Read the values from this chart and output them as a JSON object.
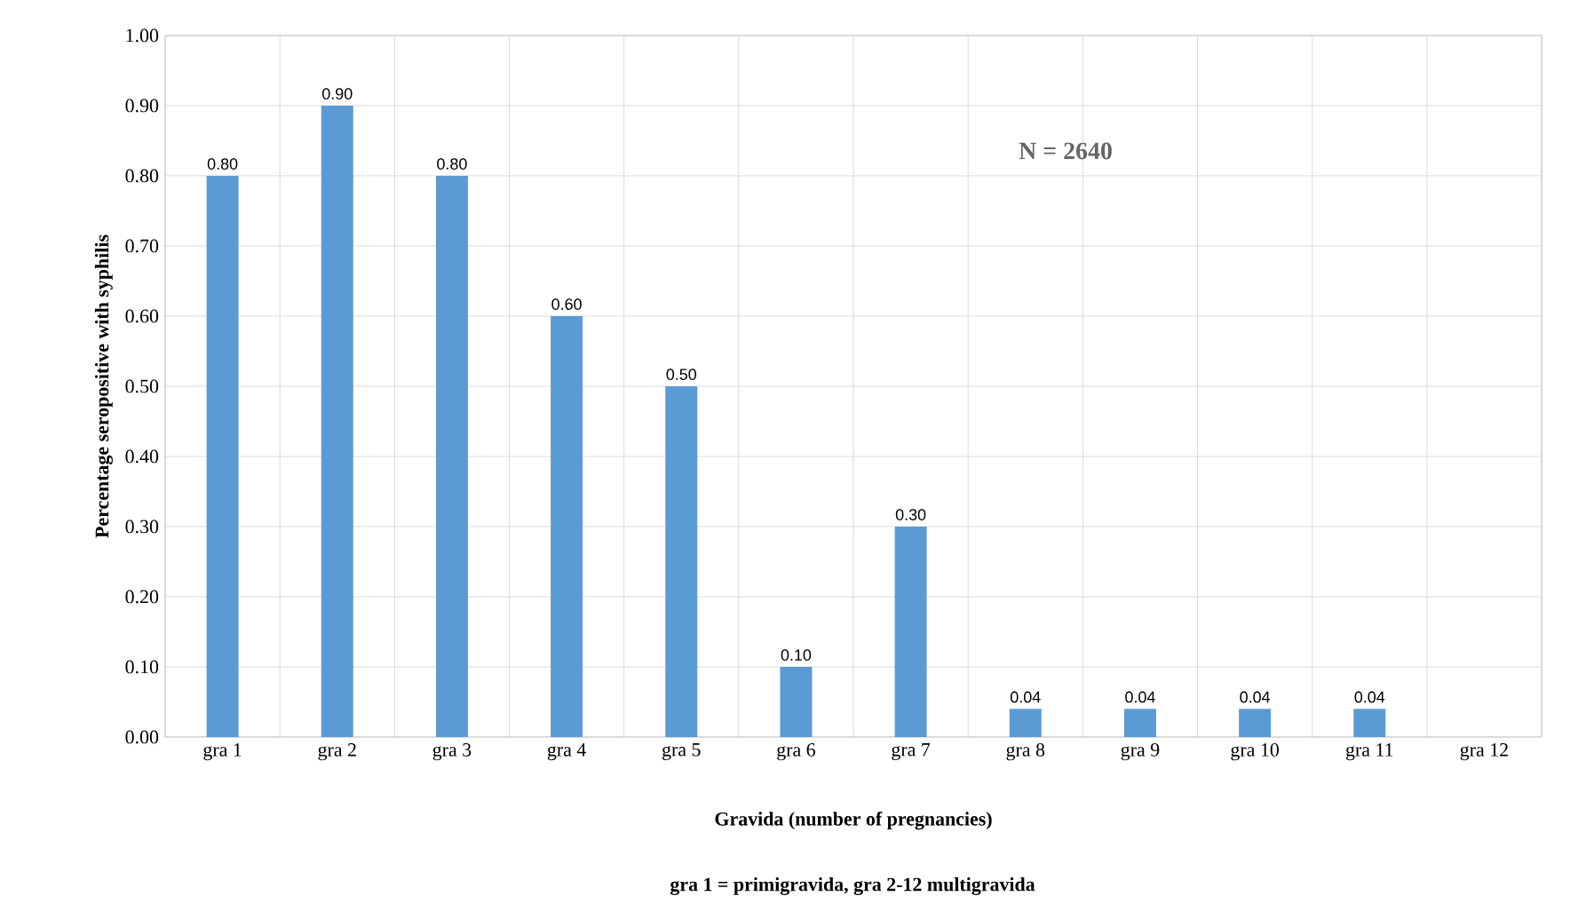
{
  "chart_data": {
    "type": "bar",
    "categories": [
      "gra 1",
      "gra 2",
      "gra 3",
      "gra 4",
      "gra 5",
      "gra 6",
      "gra 7",
      "gra 8",
      "gra 9",
      "gra 10",
      "gra 11",
      "gra 12"
    ],
    "values": [
      0.8,
      0.9,
      0.8,
      0.6,
      0.5,
      0.1,
      0.3,
      0.04,
      0.04,
      0.04,
      0.04,
      null
    ],
    "value_labels": [
      "0.80",
      "0.90",
      "0.80",
      "0.60",
      "0.50",
      "0.10",
      "0.30",
      "0.04",
      "0.04",
      "0.04",
      "0.04",
      null
    ],
    "color": "#5b9bd5",
    "ylabel": "Percentage seropositive with syphilis",
    "xlabel": "Gravida  (number  of pregnancies)",
    "annotations": [
      "N = 2640",
      "gra 1 = primigravida,  gra 2-12 multigravida"
    ],
    "ylim": [
      0,
      1
    ],
    "yticks": [
      {
        "value": 0,
        "label": "0.00"
      },
      {
        "value": 0.1,
        "label": "0.10"
      },
      {
        "value": 0.2,
        "label": "0.20"
      },
      {
        "value": 0.3,
        "label": "0.30"
      },
      {
        "value": 0.4,
        "label": "0.40"
      },
      {
        "value": 0.5,
        "label": "0.50"
      },
      {
        "value": 0.6,
        "label": "0.60"
      },
      {
        "value": 0.7,
        "label": "0.70"
      },
      {
        "value": 0.8,
        "label": "0.80"
      },
      {
        "value": 0.9,
        "label": "0.90"
      },
      {
        "value": 1,
        "label": "1.00"
      }
    ],
    "grid": true
  }
}
